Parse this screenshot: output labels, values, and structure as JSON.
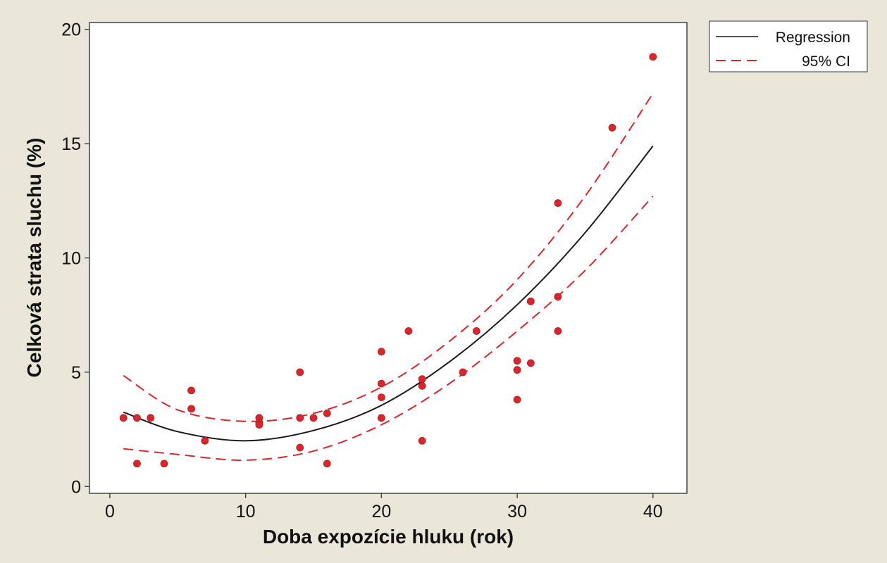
{
  "chart_data": {
    "type": "scatter",
    "title": "",
    "xlabel": "Doba expozície hluku (rok)",
    "ylabel": "Celková strata sluchu (%)",
    "xlim": [
      -1.5,
      42.5
    ],
    "ylim": [
      -0.3,
      20.3
    ],
    "xticks": [
      0,
      10,
      20,
      30,
      40
    ],
    "yticks": [
      0,
      5,
      10,
      15,
      20
    ],
    "grid": false,
    "legend_position": "top-right",
    "legend": [
      {
        "label": "Regression",
        "style": "solid",
        "color": "#1a1a1a"
      },
      {
        "label": "95% CI",
        "style": "dashed",
        "color": "#d9262b"
      }
    ],
    "marker_color": "#d9262b",
    "points": [
      {
        "x": 1,
        "y": 3.0
      },
      {
        "x": 2,
        "y": 3.0
      },
      {
        "x": 2,
        "y": 1.0
      },
      {
        "x": 3,
        "y": 3.0
      },
      {
        "x": 4,
        "y": 1.0
      },
      {
        "x": 6,
        "y": 4.2
      },
      {
        "x": 6,
        "y": 3.4
      },
      {
        "x": 7,
        "y": 2.0
      },
      {
        "x": 11,
        "y": 3.0
      },
      {
        "x": 11,
        "y": 2.8
      },
      {
        "x": 11,
        "y": 2.7
      },
      {
        "x": 14,
        "y": 5.0
      },
      {
        "x": 14,
        "y": 3.0
      },
      {
        "x": 14,
        "y": 1.7
      },
      {
        "x": 15,
        "y": 3.0
      },
      {
        "x": 16,
        "y": 3.2
      },
      {
        "x": 16,
        "y": 1.0
      },
      {
        "x": 20,
        "y": 5.9
      },
      {
        "x": 20,
        "y": 4.5
      },
      {
        "x": 20,
        "y": 3.9
      },
      {
        "x": 20,
        "y": 3.0
      },
      {
        "x": 22,
        "y": 6.8
      },
      {
        "x": 23,
        "y": 4.7
      },
      {
        "x": 23,
        "y": 4.4
      },
      {
        "x": 23,
        "y": 2.0
      },
      {
        "x": 26,
        "y": 5.0
      },
      {
        "x": 27,
        "y": 6.8
      },
      {
        "x": 30,
        "y": 5.5
      },
      {
        "x": 30,
        "y": 5.1
      },
      {
        "x": 30,
        "y": 3.8
      },
      {
        "x": 31,
        "y": 8.1
      },
      {
        "x": 31,
        "y": 5.4
      },
      {
        "x": 33,
        "y": 12.4
      },
      {
        "x": 33,
        "y": 8.3
      },
      {
        "x": 33,
        "y": 6.8
      },
      {
        "x": 37,
        "y": 15.7
      },
      {
        "x": 40,
        "y": 18.8
      }
    ],
    "regression": {
      "x": [
        1,
        5,
        10,
        15,
        20,
        25,
        30,
        35,
        40
      ],
      "y": [
        3.25,
        2.4,
        2.0,
        2.45,
        3.55,
        5.45,
        7.95,
        11.1,
        14.9
      ]
    },
    "ci_upper": {
      "x": [
        1,
        5,
        10,
        15,
        20,
        25,
        30,
        35,
        40
      ],
      "y": [
        4.85,
        3.35,
        2.85,
        3.2,
        4.35,
        6.35,
        9.05,
        12.7,
        17.2
      ]
    },
    "ci_lower": {
      "x": [
        1,
        5,
        10,
        15,
        20,
        25,
        30,
        35,
        40
      ],
      "y": [
        1.65,
        1.4,
        1.15,
        1.55,
        2.7,
        4.5,
        6.8,
        9.45,
        12.7
      ]
    }
  }
}
